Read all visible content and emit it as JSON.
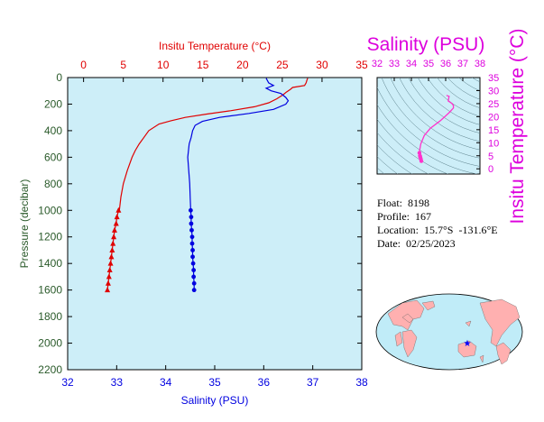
{
  "colors": {
    "panel_bg": "#cdeef8",
    "temperature": "#e00000",
    "salinity": "#0000e0",
    "ts_curve": "#ff33cc",
    "ts_label": "#dd00dd",
    "pressure_axis": "#2a5a2a",
    "contour": "#5a7f8a",
    "land": "#ffb0b0",
    "ocean": "#c0ecf8",
    "float_marker": "#0000ff"
  },
  "info": {
    "float": "Float:  8198",
    "profile": "Profile:  167",
    "location": "Location:  15.7°S  -131.6°E",
    "date": "Date:  02/25/2023"
  },
  "chart_data": [
    {
      "type": "line",
      "name": "profile",
      "top_axis_label": "Insitu Temperature (°C)",
      "bottom_axis_label": "Salinity (PSU)",
      "y_axis_label": "Pressure (decibar)",
      "temperature_range": [
        -2,
        35
      ],
      "temperature_ticks": [
        0,
        5,
        10,
        15,
        20,
        25,
        30,
        35
      ],
      "salinity_range": [
        32,
        38
      ],
      "salinity_ticks": [
        32,
        33,
        34,
        35,
        36,
        37,
        38
      ],
      "pressure_range": [
        0,
        2200
      ],
      "pressure_ticks": [
        0,
        200,
        400,
        600,
        800,
        1000,
        1200,
        1400,
        1600,
        1800,
        2000,
        2200
      ],
      "grid": false,
      "series": [
        {
          "key": "temperature",
          "axis": "top",
          "pressure": [
            5,
            20,
            40,
            60,
            75,
            90,
            110,
            130,
            160,
            190,
            220,
            250,
            275,
            300,
            325,
            350,
            400,
            450,
            500,
            550,
            600,
            700,
            800,
            900,
            1000
          ],
          "values": [
            28.2,
            28.1,
            28.0,
            27.8,
            26.3,
            26.0,
            25.5,
            25.1,
            24.3,
            23.3,
            21.5,
            18.5,
            15.5,
            12.8,
            11.0,
            9.5,
            8.2,
            7.6,
            7.0,
            6.5,
            6.1,
            5.5,
            5.0,
            4.7,
            4.5
          ],
          "marker_pressure": [
            1000,
            1050,
            1100,
            1150,
            1200,
            1250,
            1300,
            1350,
            1400,
            1450,
            1500,
            1550,
            1600
          ],
          "marker_values": [
            4.4,
            4.2,
            4.1,
            3.9,
            3.8,
            3.7,
            3.6,
            3.5,
            3.4,
            3.3,
            3.2,
            3.1,
            3.0
          ]
        },
        {
          "key": "salinity",
          "axis": "bottom",
          "pressure": [
            5,
            40,
            60,
            80,
            100,
            120,
            150,
            175,
            200,
            240,
            270,
            300,
            330,
            360,
            400,
            450,
            500,
            600,
            700,
            800,
            900,
            1000
          ],
          "values": [
            36.05,
            36.1,
            36.2,
            36.05,
            36.15,
            36.35,
            36.45,
            36.5,
            36.45,
            36.2,
            35.7,
            35.1,
            34.75,
            34.6,
            34.55,
            34.52,
            34.48,
            34.45,
            34.47,
            34.49,
            34.5,
            34.51
          ],
          "marker_pressure": [
            1000,
            1050,
            1100,
            1150,
            1200,
            1250,
            1300,
            1350,
            1400,
            1450,
            1500,
            1550,
            1600
          ],
          "marker_values": [
            34.51,
            34.52,
            34.52,
            34.53,
            34.54,
            34.54,
            34.55,
            34.55,
            34.56,
            34.57,
            34.57,
            34.58,
            34.58
          ]
        }
      ]
    },
    {
      "type": "line",
      "name": "ts-diagram",
      "top_axis_label": "Salinity (PSU)",
      "right_axis_label": "Insitu Temperature (°C)",
      "salinity_range": [
        32,
        38
      ],
      "salinity_ticks": [
        32,
        33,
        34,
        35,
        36,
        37,
        38
      ],
      "temperature_range": [
        -2,
        35
      ],
      "temperature_ticks": [
        0,
        5,
        10,
        15,
        20,
        25,
        30,
        35
      ],
      "series": [
        {
          "salinity": [
            36.05,
            36.1,
            36.2,
            36.15,
            36.35,
            36.45,
            36.45,
            36.2,
            35.7,
            35.1,
            34.75,
            34.55,
            34.48,
            34.47,
            34.5,
            34.52,
            34.55,
            34.58
          ],
          "temperature": [
            28.2,
            28.0,
            27.8,
            26.0,
            25.1,
            24.3,
            23.3,
            21.5,
            18.5,
            15.5,
            12.8,
            9.5,
            7.0,
            6.1,
            5.0,
            4.5,
            3.8,
            3.0
          ]
        }
      ]
    }
  ]
}
